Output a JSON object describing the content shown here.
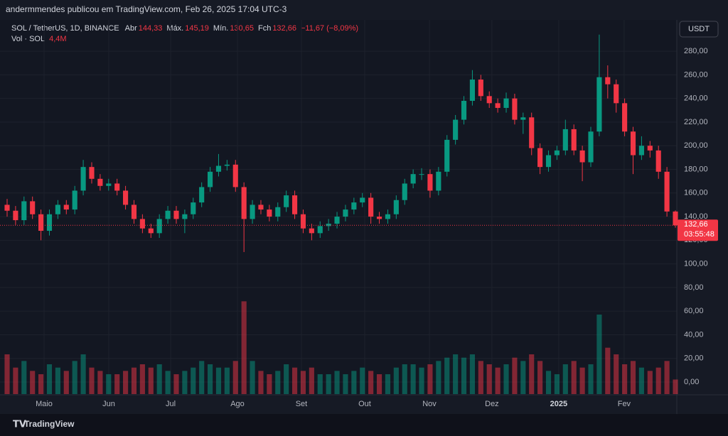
{
  "header": {
    "publisher": "andermmendes publicou em TradingView.com, Feb 26, 2025 17:04 UTC-3"
  },
  "legend": {
    "symbol": "SOL / TetherUS, 1D, BINANCE",
    "open_label": "Abr",
    "open": "144,33",
    "high_label": "Máx.",
    "high": "145,19",
    "low_label": "Mín.",
    "low": "130,65",
    "close_label": "Fch",
    "close": "132,66",
    "change": "−11,67 (−8,09%)",
    "volume_name": "Vol · SOL",
    "volume": "4,4M"
  },
  "currency_button": "USDT",
  "footer": {
    "brand": "TradingView"
  },
  "chart_data": {
    "type": "candlestick",
    "up_color": "#089981",
    "down_color": "#f23645",
    "open": [
      150,
      145,
      137,
      153,
      142,
      128,
      142,
      150,
      146,
      162,
      182,
      172,
      166,
      168,
      162,
      150,
      138,
      130,
      126,
      138,
      145,
      138,
      142,
      152,
      165,
      178,
      183,
      184,
      165,
      138,
      150,
      146,
      140,
      148,
      158,
      142,
      130,
      126,
      132,
      134,
      140,
      146,
      152,
      156,
      140,
      138,
      142,
      154,
      168,
      176,
      176,
      162,
      178,
      205,
      222,
      238,
      256,
      242,
      236,
      232,
      240,
      222,
      224,
      198,
      182,
      192,
      196,
      214,
      196,
      186,
      212,
      258,
      252,
      236,
      212,
      192,
      200,
      196,
      178,
      144.33
    ],
    "high": [
      155,
      149,
      157,
      157,
      146,
      146,
      154,
      154,
      166,
      188,
      186,
      176,
      172,
      172,
      166,
      154,
      142,
      134,
      142,
      149,
      149,
      146,
      156,
      169,
      182,
      193,
      188,
      188,
      169,
      154,
      154,
      150,
      152,
      162,
      162,
      146,
      134,
      136,
      138,
      144,
      150,
      156,
      160,
      160,
      144,
      146,
      158,
      172,
      180,
      181,
      180,
      182,
      209,
      226,
      242,
      264,
      260,
      246,
      240,
      245,
      244,
      228,
      228,
      202,
      196,
      200,
      222,
      218,
      200,
      216,
      294,
      268,
      256,
      240,
      216,
      208,
      204,
      200,
      182,
      145.19
    ],
    "low": [
      140,
      133,
      133,
      138,
      120,
      124,
      138,
      142,
      142,
      158,
      168,
      162,
      162,
      158,
      146,
      134,
      126,
      122,
      122,
      134,
      134,
      126,
      138,
      148,
      161,
      174,
      179,
      161,
      110,
      134,
      142,
      136,
      136,
      144,
      138,
      126,
      120,
      122,
      128,
      130,
      136,
      142,
      148,
      134,
      134,
      134,
      138,
      150,
      164,
      171,
      156,
      158,
      174,
      201,
      218,
      234,
      238,
      232,
      228,
      228,
      218,
      210,
      192,
      176,
      178,
      188,
      192,
      192,
      170,
      182,
      208,
      240,
      228,
      208,
      176,
      188,
      190,
      172,
      140,
      130.65
    ],
    "close": [
      145,
      137,
      153,
      142,
      128,
      142,
      150,
      146,
      162,
      182,
      172,
      166,
      168,
      162,
      150,
      138,
      130,
      126,
      138,
      145,
      138,
      142,
      152,
      165,
      178,
      183,
      184,
      165,
      138,
      150,
      146,
      140,
      148,
      158,
      142,
      130,
      126,
      132,
      134,
      140,
      146,
      152,
      156,
      140,
      138,
      142,
      154,
      168,
      176,
      176,
      162,
      178,
      205,
      222,
      238,
      256,
      242,
      236,
      232,
      240,
      222,
      224,
      198,
      182,
      192,
      196,
      214,
      196,
      186,
      212,
      258,
      252,
      236,
      212,
      192,
      200,
      196,
      178,
      144.33,
      132.66
    ],
    "volume": [
      12,
      8,
      10,
      7,
      6,
      9,
      8,
      7,
      10,
      12,
      8,
      7,
      6,
      6,
      7,
      8,
      9,
      8,
      9,
      7,
      6,
      7,
      8,
      10,
      9,
      8,
      8,
      10,
      28,
      10,
      7,
      6,
      7,
      9,
      8,
      7,
      8,
      6,
      6,
      7,
      6,
      7,
      8,
      7,
      6,
      6,
      8,
      9,
      9,
      8,
      9,
      10,
      11,
      12,
      11,
      12,
      10,
      9,
      8,
      9,
      11,
      10,
      12,
      10,
      7,
      6,
      9,
      10,
      8,
      9,
      24,
      14,
      12,
      9,
      10,
      8,
      7,
      8,
      10,
      4.4
    ],
    "volume_lim": [
      0,
      30
    ],
    "xlim": [
      0,
      79
    ],
    "xticks": [
      {
        "value": 4.37,
        "label": "Maio"
      },
      {
        "value": 12.02,
        "label": "Jun"
      },
      {
        "value": 19.33,
        "label": "Jul"
      },
      {
        "value": 27.23,
        "label": "Ago"
      },
      {
        "value": 34.79,
        "label": "Set"
      },
      {
        "value": 42.27,
        "label": "Out"
      },
      {
        "value": 49.92,
        "label": "Nov"
      },
      {
        "value": 57.31,
        "label": "Dez"
      },
      {
        "value": 65.21,
        "label": "2025"
      },
      {
        "value": 72.94,
        "label": "Fev"
      }
    ],
    "ylim": [
      -10.8,
      306.5
    ],
    "yticks": [
      {
        "value": 0,
        "label": "0,00"
      },
      {
        "value": 20,
        "label": "20,00"
      },
      {
        "value": 40,
        "label": "40,00"
      },
      {
        "value": 60,
        "label": "60,00"
      },
      {
        "value": 80,
        "label": "80,00"
      },
      {
        "value": 100,
        "label": "100,00"
      },
      {
        "value": 120,
        "label": "120,00"
      },
      {
        "value": 140,
        "label": "140,00"
      },
      {
        "value": 160,
        "label": "160,00"
      },
      {
        "value": 180,
        "label": "180,00"
      },
      {
        "value": 200,
        "label": "200,00"
      },
      {
        "value": 220,
        "label": "220,00"
      },
      {
        "value": 240,
        "label": "240,00"
      },
      {
        "value": 260,
        "label": "260,00"
      },
      {
        "value": 280,
        "label": "280,00"
      }
    ],
    "grid": true,
    "last_price": {
      "value": 132.66,
      "label": "132,66"
    },
    "countdown": "03:55:48"
  }
}
